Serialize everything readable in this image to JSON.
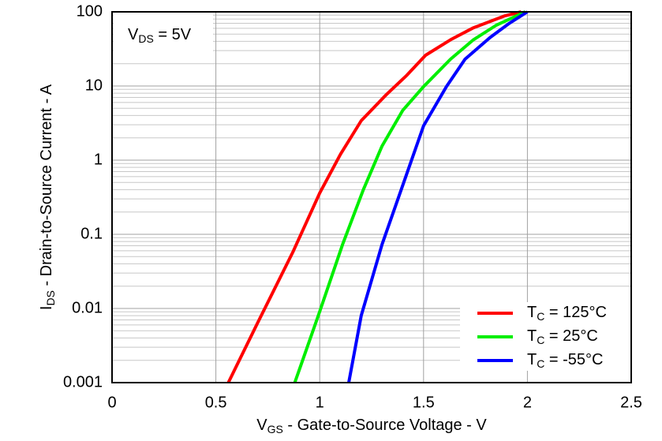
{
  "chart_data": {
    "type": "line",
    "annotation": {
      "text": "V",
      "sub": "DS",
      "rest": " = 5V"
    },
    "x_label": {
      "text": "V",
      "sub": "GS",
      "rest": " - Gate-to-Source Voltage - V"
    },
    "y_label": {
      "text": "I",
      "sub": "DS",
      "rest": " - Drain-to-Source Current - A"
    },
    "xlim": [
      0,
      2.5
    ],
    "xticks": [
      0,
      0.5,
      1,
      1.5,
      2,
      2.5
    ],
    "ylim": [
      0.001,
      100
    ],
    "yticks": [
      0.001,
      0.01,
      0.1,
      1,
      10,
      100
    ],
    "yminor": [
      0.002,
      0.003,
      0.004,
      0.005,
      0.006,
      0.007,
      0.008,
      0.009,
      0.02,
      0.03,
      0.04,
      0.05,
      0.06,
      0.07,
      0.08,
      0.09,
      0.2,
      0.3,
      0.4,
      0.5,
      0.6,
      0.7,
      0.8,
      0.9,
      2,
      3,
      4,
      5,
      6,
      7,
      8,
      9,
      20,
      30,
      40,
      50,
      60,
      70,
      80,
      90
    ],
    "y_scale": "log",
    "grid": true,
    "legend": "lower right",
    "series": [
      {
        "name": {
          "text": "T",
          "sub": "C",
          "rest": " = 125°C"
        },
        "color": "#ff0000",
        "x": [
          0.56,
          0.7,
          0.87,
          1.0,
          1.1,
          1.2,
          1.32,
          1.42,
          1.51,
          1.63,
          1.74,
          1.89,
          1.97
        ],
        "values": [
          0.001,
          0.0063,
          0.057,
          0.36,
          1.2,
          3.4,
          7.6,
          14,
          26,
          42,
          61,
          88,
          100
        ]
      },
      {
        "name": {
          "text": "T",
          "sub": "C",
          "rest": " = 25°C"
        },
        "color": "#00ee00",
        "x": [
          0.88,
          1.0,
          1.11,
          1.21,
          1.3,
          1.4,
          1.5,
          1.63,
          1.74,
          1.85,
          1.99
        ],
        "values": [
          0.001,
          0.0091,
          0.073,
          0.4,
          1.55,
          4.7,
          9.8,
          23,
          42,
          66,
          100
        ]
      },
      {
        "name": {
          "text": "T",
          "sub": "C",
          "rest": " = -55°C"
        },
        "color": "#0000ff",
        "x": [
          1.14,
          1.2,
          1.3,
          1.4,
          1.5,
          1.61,
          1.7,
          1.82,
          1.91,
          2.0
        ],
        "values": [
          0.001,
          0.008,
          0.073,
          0.46,
          2.9,
          9.8,
          23,
          45,
          69,
          100
        ]
      }
    ]
  }
}
